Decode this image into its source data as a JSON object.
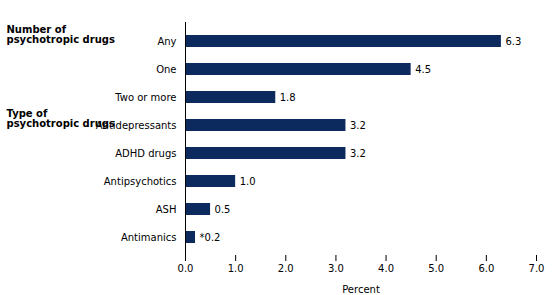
{
  "chart_data": {
    "type": "bar",
    "orientation": "horizontal",
    "categories": [
      "Antimanics",
      "ASH",
      "Antipsychotics",
      "ADHD drugs",
      "Antidepressants",
      "Two or more",
      "One",
      "Any"
    ],
    "values": [
      0.2,
      0.5,
      1.0,
      3.2,
      3.2,
      1.8,
      4.5,
      6.3
    ],
    "value_labels": [
      "*0.2",
      "0.5",
      "1.0",
      "3.2",
      "3.2",
      "1.8",
      "4.5",
      "6.3"
    ],
    "data_labels": true,
    "color": "#0d2a5e",
    "xlabel": "Percent",
    "xlim": [
      0,
      7
    ],
    "xticks": [
      0,
      1,
      2,
      3,
      4,
      5,
      6,
      7
    ],
    "grid": false,
    "annotations": [
      {
        "text": "Number of\npsychotropic drugs",
        "category": "Any"
      },
      {
        "text": "Type of\npsychotropic drugs",
        "category": "Antidepressants"
      }
    ]
  }
}
